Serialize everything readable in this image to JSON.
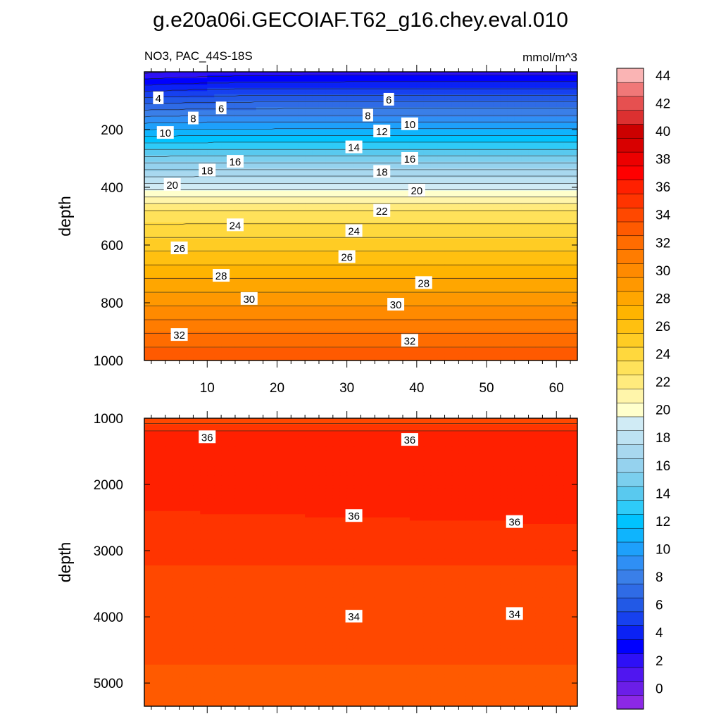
{
  "title": "g.e20a06i.GECOIAF.T62_g16.chey.eval.010",
  "subtitle_left": "NO3, PAC_44S-18S",
  "subtitle_right": "mmol/m^3",
  "chart_data": [
    {
      "type": "heatmap",
      "panel": "upper",
      "ylabel": "depth",
      "xlim": [
        1,
        63
      ],
      "ylim": [
        0,
        1000
      ],
      "y_reversed": true,
      "x_ticks": [
        10,
        20,
        30,
        40,
        50,
        60
      ],
      "y_ticks": [
        200,
        400,
        600,
        800,
        1000
      ],
      "contour_interval": 1,
      "contour_labels": [
        {
          "value": 4,
          "x": 3,
          "y": 90
        },
        {
          "value": 6,
          "x": 12,
          "y": 125
        },
        {
          "value": 6,
          "x": 36,
          "y": 95
        },
        {
          "value": 8,
          "x": 8,
          "y": 160
        },
        {
          "value": 8,
          "x": 33,
          "y": 150
        },
        {
          "value": 10,
          "x": 4,
          "y": 210
        },
        {
          "value": 10,
          "x": 39,
          "y": 180
        },
        {
          "value": 12,
          "x": 35,
          "y": 205
        },
        {
          "value": 14,
          "x": 31,
          "y": 260
        },
        {
          "value": 16,
          "x": 14,
          "y": 310
        },
        {
          "value": 16,
          "x": 39,
          "y": 300
        },
        {
          "value": 18,
          "x": 10,
          "y": 340
        },
        {
          "value": 18,
          "x": 35,
          "y": 345
        },
        {
          "value": 20,
          "x": 5,
          "y": 390
        },
        {
          "value": 20,
          "x": 40,
          "y": 410
        },
        {
          "value": 22,
          "x": 35,
          "y": 480
        },
        {
          "value": 24,
          "x": 14,
          "y": 530
        },
        {
          "value": 24,
          "x": 31,
          "y": 550
        },
        {
          "value": 26,
          "x": 6,
          "y": 610
        },
        {
          "value": 26,
          "x": 30,
          "y": 640
        },
        {
          "value": 28,
          "x": 12,
          "y": 705
        },
        {
          "value": 28,
          "x": 41,
          "y": 730
        },
        {
          "value": 30,
          "x": 16,
          "y": 785
        },
        {
          "value": 30,
          "x": 37,
          "y": 805
        },
        {
          "value": 32,
          "x": 6,
          "y": 910
        },
        {
          "value": 32,
          "x": 39,
          "y": 930
        }
      ]
    },
    {
      "type": "heatmap",
      "panel": "lower",
      "ylabel": "depth",
      "xlim": [
        1,
        63
      ],
      "ylim": [
        1000,
        5350
      ],
      "y_reversed": true,
      "y_ticks": [
        1000,
        2000,
        3000,
        4000,
        5000
      ],
      "contour_labels": [
        {
          "value": 36,
          "x": 10,
          "y": 1280
        },
        {
          "value": 36,
          "x": 39,
          "y": 1320
        },
        {
          "value": 36,
          "x": 31,
          "y": 2470
        },
        {
          "value": 36,
          "x": 54,
          "y": 2560
        },
        {
          "value": 34,
          "x": 31,
          "y": 3990
        },
        {
          "value": 34,
          "x": 54,
          "y": 3950
        }
      ]
    },
    {
      "type": "colorbar",
      "levels": [
        0,
        2,
        4,
        6,
        8,
        10,
        12,
        14,
        16,
        18,
        20,
        22,
        24,
        26,
        28,
        30,
        32,
        34,
        36,
        38,
        40,
        42,
        44
      ],
      "colors": [
        "#8c28e6",
        "#6b1ee8",
        "#5016f0",
        "#2e10f6",
        "#0000ff",
        "#0b22f5",
        "#1741ef",
        "#2259e6",
        "#2f6be6",
        "#3a7fe8",
        "#2f8ff5",
        "#1ea0fb",
        "#0fb4fd",
        "#00c3ff",
        "#2ecbf8",
        "#59c9ef",
        "#7bcfee",
        "#95d2ee",
        "#a8d8ef",
        "#bde2f2",
        "#d0ebf5",
        "#ffffcc",
        "#fff5aa",
        "#ffeb7d",
        "#ffe25a",
        "#ffd83d",
        "#ffcc24",
        "#ffc010",
        "#ffb400",
        "#ffa600",
        "#ff9800",
        "#ff8a00",
        "#ff7c00",
        "#ff6c00",
        "#ff5a00",
        "#ff4800",
        "#ff3400",
        "#ff2000",
        "#ff0000",
        "#ec0000",
        "#d80000",
        "#cc0000",
        "#dc3030",
        "#e65050",
        "#f07878",
        "#fab4b4"
      ]
    }
  ]
}
